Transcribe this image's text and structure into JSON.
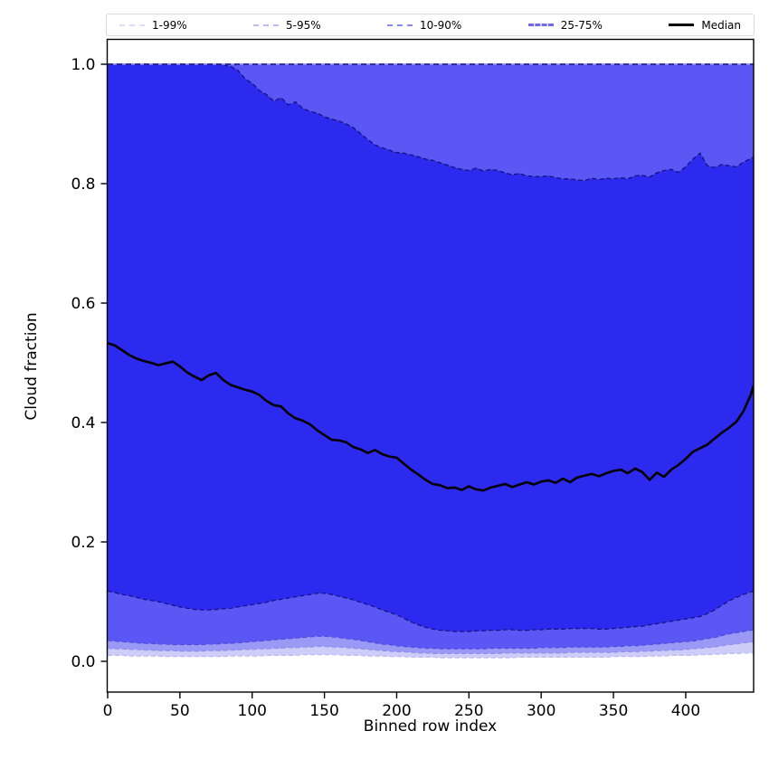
{
  "chart_data": {
    "type": "area",
    "title": "",
    "xlabel": "Binned row index",
    "ylabel": "Cloud fraction",
    "xlim": [
      0,
      447
    ],
    "ylim": [
      -0.05,
      1.05
    ],
    "grid": false,
    "xticks": [
      0,
      50,
      100,
      150,
      200,
      250,
      300,
      350,
      400
    ],
    "yticks": [
      0.0,
      0.2,
      0.4,
      0.6,
      0.8,
      1.0
    ],
    "yticklabels": [
      "0.0",
      "0.2",
      "0.4",
      "0.6",
      "0.8",
      "1.0"
    ],
    "legend": {
      "position": "above-plot",
      "entries": [
        {
          "label": "1-99%",
          "color": "#dddcfb",
          "style": "dashed",
          "width": 2
        },
        {
          "label": "5-95%",
          "color": "#bbbaf7",
          "style": "dashed",
          "width": 2
        },
        {
          "label": "10-90%",
          "color": "#8a88f2",
          "style": "dashed",
          "width": 2
        },
        {
          "label": "25-75%",
          "color": "#6e6bee",
          "style": "dashed",
          "width": 3
        },
        {
          "label": "Median",
          "color": "#000000",
          "style": "solid",
          "width": 3
        }
      ]
    },
    "upper_percentiles_note": "p90, p95 and p99 are constant at 1.0 across the full x range",
    "upper_value": 1.0,
    "x": [
      0,
      5,
      10,
      15,
      20,
      25,
      30,
      35,
      40,
      45,
      50,
      55,
      60,
      65,
      70,
      75,
      80,
      85,
      90,
      95,
      100,
      105,
      110,
      115,
      120,
      125,
      130,
      135,
      140,
      145,
      150,
      155,
      160,
      165,
      170,
      175,
      180,
      185,
      190,
      195,
      200,
      205,
      210,
      215,
      220,
      225,
      230,
      235,
      240,
      245,
      250,
      255,
      260,
      265,
      270,
      275,
      280,
      285,
      290,
      295,
      300,
      305,
      310,
      315,
      320,
      325,
      330,
      335,
      340,
      345,
      350,
      355,
      360,
      365,
      370,
      375,
      380,
      385,
      390,
      395,
      400,
      405,
      410,
      415,
      420,
      425,
      430,
      435,
      440,
      445,
      447
    ],
    "series": {
      "median": [
        0.533,
        0.529,
        0.521,
        0.513,
        0.507,
        0.503,
        0.5,
        0.496,
        0.499,
        0.502,
        0.494,
        0.484,
        0.477,
        0.471,
        0.479,
        0.483,
        0.471,
        0.463,
        0.459,
        0.455,
        0.452,
        0.446,
        0.436,
        0.429,
        0.427,
        0.415,
        0.407,
        0.403,
        0.397,
        0.387,
        0.379,
        0.371,
        0.37,
        0.367,
        0.359,
        0.355,
        0.349,
        0.354,
        0.347,
        0.343,
        0.341,
        0.331,
        0.321,
        0.313,
        0.304,
        0.297,
        0.295,
        0.29,
        0.291,
        0.287,
        0.293,
        0.288,
        0.286,
        0.291,
        0.294,
        0.297,
        0.292,
        0.296,
        0.3,
        0.296,
        0.301,
        0.303,
        0.299,
        0.306,
        0.3,
        0.308,
        0.311,
        0.314,
        0.31,
        0.315,
        0.319,
        0.321,
        0.315,
        0.323,
        0.317,
        0.304,
        0.316,
        0.309,
        0.321,
        0.329,
        0.339,
        0.351,
        0.357,
        0.363,
        0.373,
        0.383,
        0.391,
        0.401,
        0.419,
        0.446,
        0.462
      ],
      "p75": [
        1.0,
        1.0,
        1.0,
        1.0,
        1.0,
        1.0,
        1.0,
        1.0,
        1.0,
        1.0,
        1.0,
        1.0,
        1.0,
        1.0,
        1.0,
        1.0,
        0.999,
        0.996,
        0.99,
        0.976,
        0.968,
        0.956,
        0.949,
        0.938,
        0.944,
        0.932,
        0.937,
        0.926,
        0.921,
        0.918,
        0.912,
        0.908,
        0.905,
        0.9,
        0.894,
        0.884,
        0.874,
        0.865,
        0.86,
        0.856,
        0.852,
        0.851,
        0.848,
        0.845,
        0.841,
        0.839,
        0.835,
        0.831,
        0.827,
        0.824,
        0.822,
        0.826,
        0.821,
        0.824,
        0.822,
        0.818,
        0.815,
        0.817,
        0.813,
        0.812,
        0.812,
        0.813,
        0.81,
        0.808,
        0.808,
        0.806,
        0.805,
        0.809,
        0.807,
        0.809,
        0.808,
        0.81,
        0.808,
        0.813,
        0.814,
        0.811,
        0.818,
        0.822,
        0.824,
        0.819,
        0.828,
        0.841,
        0.851,
        0.83,
        0.827,
        0.832,
        0.83,
        0.828,
        0.836,
        0.842,
        0.845
      ],
      "p25": [
        0.118,
        0.115,
        0.112,
        0.11,
        0.107,
        0.104,
        0.102,
        0.1,
        0.097,
        0.094,
        0.091,
        0.089,
        0.087,
        0.086,
        0.086,
        0.087,
        0.088,
        0.089,
        0.091,
        0.093,
        0.095,
        0.097,
        0.099,
        0.102,
        0.104,
        0.106,
        0.108,
        0.11,
        0.112,
        0.114,
        0.114,
        0.112,
        0.109,
        0.106,
        0.103,
        0.099,
        0.095,
        0.091,
        0.086,
        0.082,
        0.078,
        0.072,
        0.066,
        0.061,
        0.057,
        0.054,
        0.052,
        0.051,
        0.05,
        0.05,
        0.05,
        0.051,
        0.051,
        0.052,
        0.052,
        0.053,
        0.053,
        0.052,
        0.052,
        0.053,
        0.053,
        0.054,
        0.054,
        0.054,
        0.055,
        0.055,
        0.055,
        0.055,
        0.054,
        0.054,
        0.055,
        0.056,
        0.057,
        0.058,
        0.059,
        0.061,
        0.063,
        0.065,
        0.067,
        0.069,
        0.071,
        0.073,
        0.075,
        0.08,
        0.086,
        0.094,
        0.101,
        0.107,
        0.112,
        0.116,
        0.118
      ],
      "p10": [
        0.035,
        0.034,
        0.033,
        0.032,
        0.031,
        0.03,
        0.03,
        0.029,
        0.029,
        0.028,
        0.028,
        0.028,
        0.028,
        0.028,
        0.029,
        0.029,
        0.03,
        0.03,
        0.031,
        0.032,
        0.033,
        0.034,
        0.035,
        0.036,
        0.037,
        0.038,
        0.039,
        0.04,
        0.041,
        0.042,
        0.042,
        0.041,
        0.04,
        0.038,
        0.037,
        0.035,
        0.033,
        0.031,
        0.029,
        0.028,
        0.026,
        0.025,
        0.024,
        0.023,
        0.022,
        0.022,
        0.021,
        0.021,
        0.021,
        0.021,
        0.021,
        0.021,
        0.021,
        0.022,
        0.022,
        0.022,
        0.022,
        0.022,
        0.022,
        0.022,
        0.023,
        0.023,
        0.023,
        0.023,
        0.024,
        0.024,
        0.024,
        0.024,
        0.024,
        0.024,
        0.025,
        0.025,
        0.026,
        0.026,
        0.027,
        0.028,
        0.029,
        0.03,
        0.031,
        0.032,
        0.033,
        0.034,
        0.036,
        0.038,
        0.04,
        0.043,
        0.046,
        0.048,
        0.05,
        0.052,
        0.053
      ],
      "p5": [
        0.022,
        0.021,
        0.021,
        0.02,
        0.02,
        0.019,
        0.019,
        0.018,
        0.018,
        0.018,
        0.017,
        0.017,
        0.017,
        0.017,
        0.018,
        0.018,
        0.018,
        0.019,
        0.019,
        0.02,
        0.02,
        0.021,
        0.021,
        0.022,
        0.022,
        0.023,
        0.023,
        0.024,
        0.024,
        0.025,
        0.025,
        0.024,
        0.024,
        0.023,
        0.022,
        0.021,
        0.02,
        0.019,
        0.018,
        0.017,
        0.016,
        0.016,
        0.015,
        0.014,
        0.014,
        0.013,
        0.013,
        0.013,
        0.013,
        0.013,
        0.013,
        0.013,
        0.013,
        0.013,
        0.013,
        0.014,
        0.014,
        0.014,
        0.014,
        0.014,
        0.014,
        0.014,
        0.014,
        0.014,
        0.015,
        0.015,
        0.015,
        0.015,
        0.015,
        0.015,
        0.015,
        0.016,
        0.016,
        0.016,
        0.017,
        0.017,
        0.018,
        0.018,
        0.019,
        0.019,
        0.02,
        0.021,
        0.022,
        0.023,
        0.024,
        0.026,
        0.028,
        0.029,
        0.031,
        0.032,
        0.033
      ],
      "p1": [
        0.01,
        0.01,
        0.01,
        0.009,
        0.009,
        0.009,
        0.009,
        0.009,
        0.008,
        0.008,
        0.008,
        0.008,
        0.008,
        0.008,
        0.008,
        0.008,
        0.008,
        0.009,
        0.009,
        0.009,
        0.009,
        0.009,
        0.01,
        0.01,
        0.01,
        0.01,
        0.01,
        0.011,
        0.011,
        0.011,
        0.011,
        0.011,
        0.011,
        0.01,
        0.01,
        0.01,
        0.009,
        0.009,
        0.009,
        0.008,
        0.008,
        0.008,
        0.007,
        0.007,
        0.007,
        0.007,
        0.006,
        0.006,
        0.006,
        0.006,
        0.006,
        0.006,
        0.006,
        0.006,
        0.006,
        0.006,
        0.006,
        0.007,
        0.007,
        0.007,
        0.007,
        0.007,
        0.007,
        0.007,
        0.007,
        0.007,
        0.007,
        0.007,
        0.007,
        0.007,
        0.008,
        0.008,
        0.008,
        0.008,
        0.008,
        0.009,
        0.009,
        0.009,
        0.01,
        0.01,
        0.01,
        0.01,
        0.011,
        0.011,
        0.012,
        0.012,
        0.013,
        0.013,
        0.014,
        0.014,
        0.014
      ]
    },
    "bands": [
      {
        "name": "band-1-99",
        "lower": "p1",
        "upper": "const",
        "fill": "#cecdfa",
        "edge": "#b9b8f0"
      },
      {
        "name": "band-5-95",
        "lower": "p5",
        "upper": "const",
        "fill": "#9b99f6",
        "edge": "#8f8de8"
      },
      {
        "name": "band-10-90",
        "lower": "p10",
        "upper": "const",
        "fill": "#5a57f5",
        "edge": "#4f4cd8"
      },
      {
        "name": "band-25-75",
        "lower": "p25",
        "upper": "p75",
        "fill": "#2d2af0",
        "edge": "#15127c"
      }
    ],
    "colors": {
      "median_line": "#000000",
      "top_edge_solid": "#8a88f2",
      "top_edge_dash": "#15127c",
      "axis": "#000000"
    }
  }
}
